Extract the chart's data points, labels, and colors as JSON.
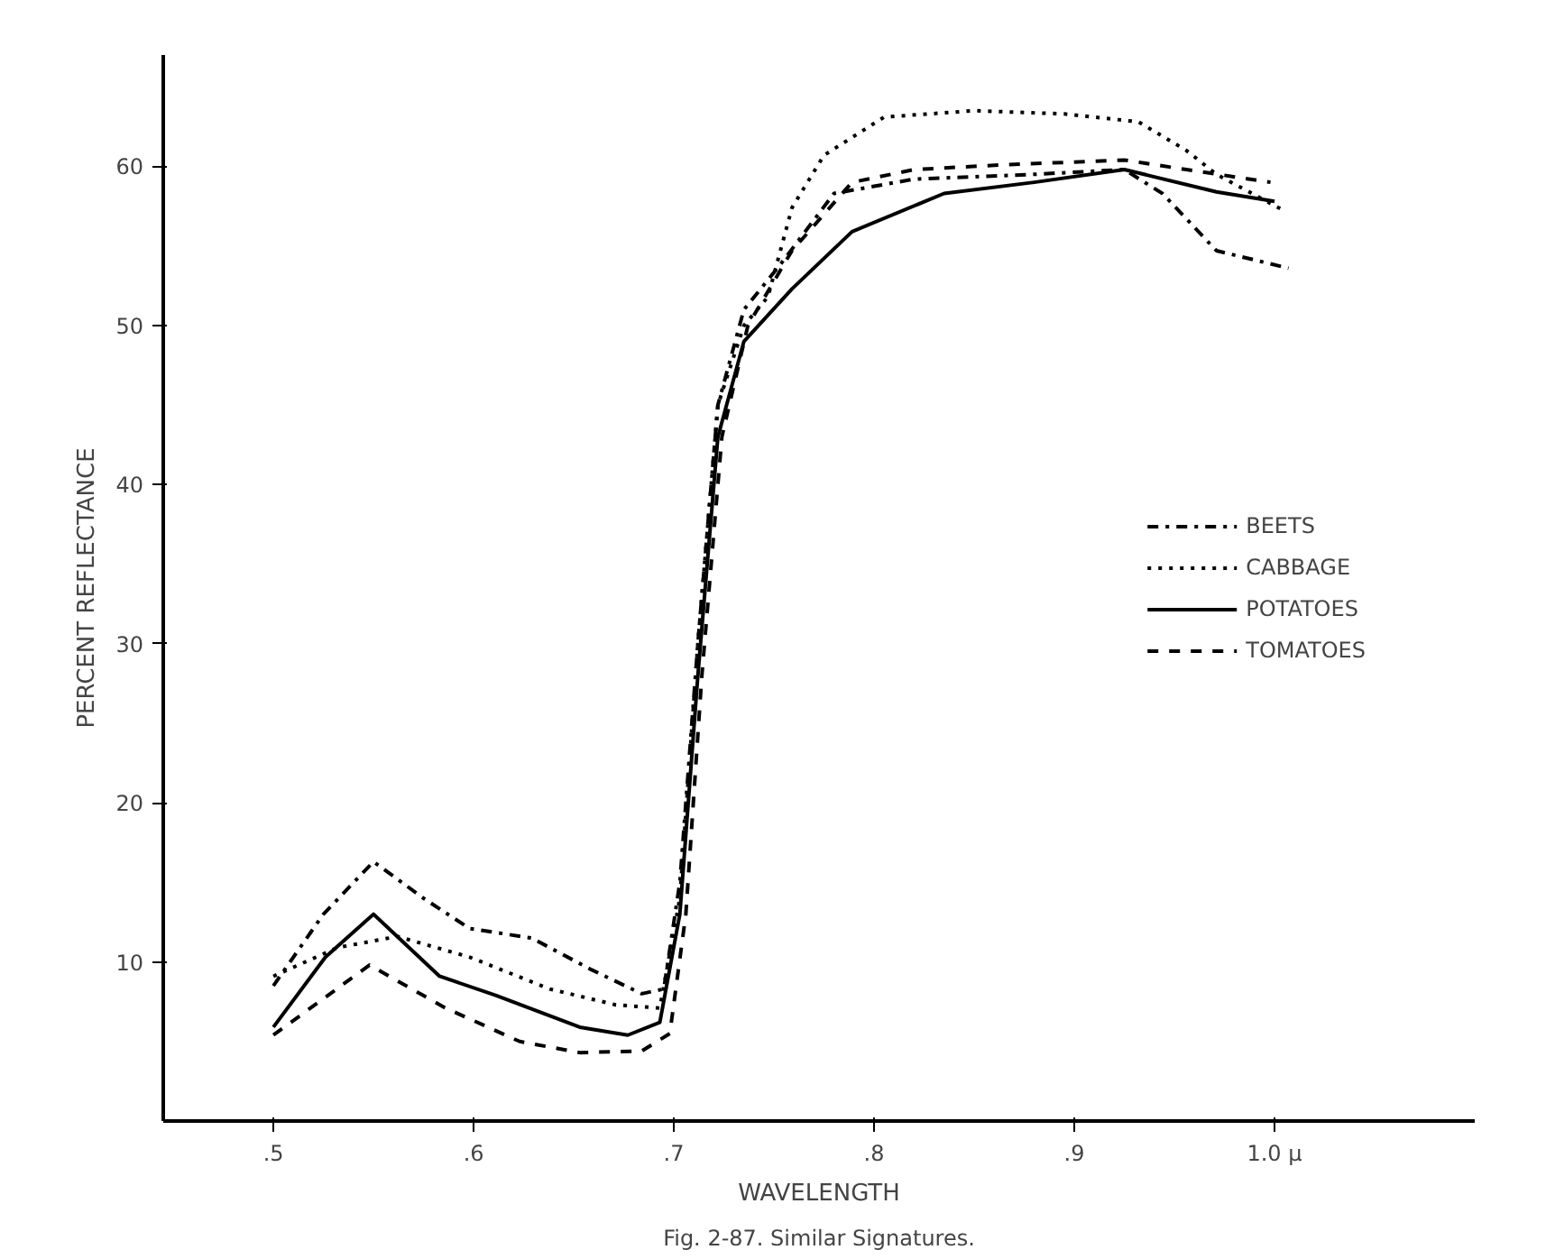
{
  "chart_data": {
    "type": "line",
    "xlabel": "WAVELENGTH",
    "ylabel": "PERCENT REFLECTANCE",
    "annotations": [
      "Fig. 2-87. Similar Signatures."
    ],
    "xlim": [
      0.445,
      1.1
    ],
    "ylim": [
      0,
      67
    ],
    "xticks": [
      {
        "value": 0.5,
        "label": ".5"
      },
      {
        "value": 0.6,
        "label": ".6"
      },
      {
        "value": 0.7,
        "label": ".7"
      },
      {
        "value": 0.8,
        "label": ".8"
      },
      {
        "value": 0.9,
        "label": ".9"
      },
      {
        "value": 1.0,
        "label": "1.0 μ"
      }
    ],
    "yticks": [
      10,
      20,
      30,
      40,
      50,
      60
    ],
    "grid": false,
    "legend": "right",
    "marker": "none",
    "series": [
      {
        "name": "BEETS",
        "color": "#000000",
        "line_style": "dashdot",
        "x": [
          0.5,
          0.525,
          0.55,
          0.575,
          0.598,
          0.629,
          0.659,
          0.684,
          0.695,
          0.703,
          0.712,
          0.722,
          0.735,
          0.753,
          0.78,
          0.82,
          0.88,
          0.925,
          0.944,
          0.971,
          1.007
        ],
        "values": [
          8.5,
          13,
          16.3,
          14,
          12.1,
          11.5,
          9.5,
          8.0,
          8.3,
          15,
          30,
          45,
          51,
          53.8,
          58.3,
          59.2,
          59.5,
          59.8,
          58.3,
          54.7,
          53.6
        ]
      },
      {
        "name": "CABBAGE",
        "color": "#000000",
        "line_style": "dotted",
        "x": [
          0.5,
          0.532,
          0.562,
          0.598,
          0.638,
          0.671,
          0.693,
          0.703,
          0.712,
          0.722,
          0.735,
          0.747,
          0.759,
          0.775,
          0.805,
          0.85,
          0.895,
          0.932,
          0.956,
          0.971,
          1.005
        ],
        "values": [
          9.1,
          10.9,
          11.6,
          10.3,
          8.3,
          7.3,
          7.1,
          14,
          30,
          45,
          50,
          51.8,
          57.4,
          60.7,
          63.1,
          63.5,
          63.3,
          62.8,
          61.0,
          59.5,
          57.2
        ]
      },
      {
        "name": "POTATOES",
        "color": "#000000",
        "line_style": "solid",
        "x": [
          0.5,
          0.526,
          0.55,
          0.583,
          0.611,
          0.653,
          0.677,
          0.693,
          0.703,
          0.712,
          0.722,
          0.735,
          0.759,
          0.789,
          0.835,
          0.88,
          0.925,
          0.971,
          1.0
        ],
        "values": [
          5.9,
          10.3,
          13.0,
          9.1,
          7.9,
          5.9,
          5.4,
          6.2,
          13,
          28,
          43,
          49,
          52.3,
          55.9,
          58.3,
          59.0,
          59.8,
          58.4,
          57.8
        ]
      },
      {
        "name": "TOMATOES",
        "color": "#000000",
        "line_style": "dashed",
        "x": [
          0.5,
          0.548,
          0.586,
          0.623,
          0.653,
          0.684,
          0.698,
          0.706,
          0.714,
          0.724,
          0.737,
          0.759,
          0.789,
          0.82,
          0.865,
          0.925,
          0.956,
          0.998
        ],
        "values": [
          5.4,
          9.8,
          7.1,
          5.0,
          4.3,
          4.4,
          5.5,
          13,
          28,
          43,
          50,
          54.7,
          59.0,
          59.8,
          60.1,
          60.4,
          59.8,
          59.0
        ]
      }
    ]
  }
}
